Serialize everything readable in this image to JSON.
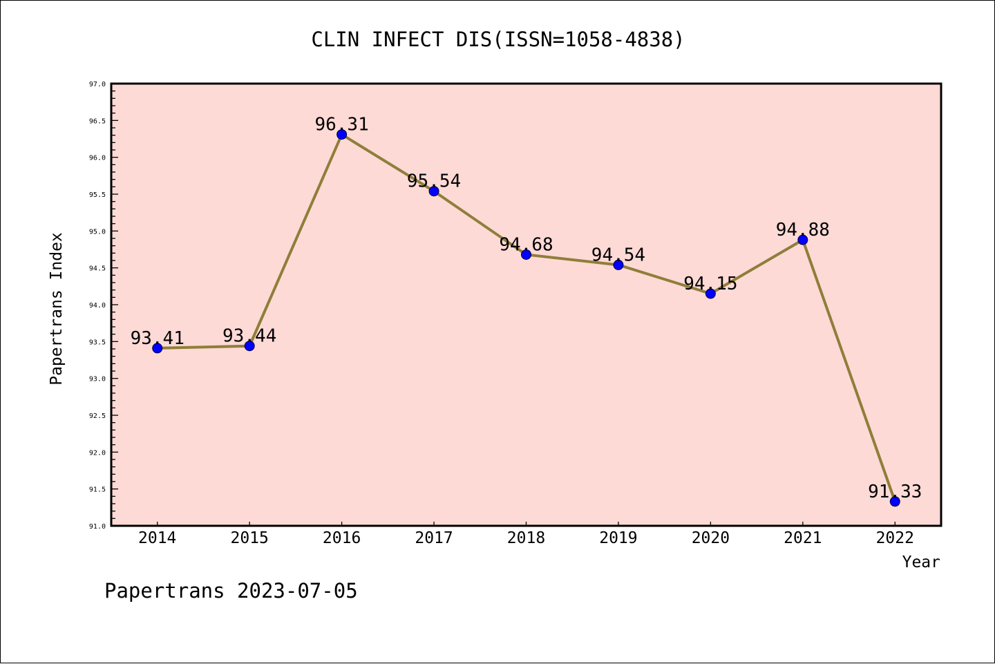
{
  "chart_data": {
    "type": "line",
    "title": "CLIN INFECT DIS(ISSN=1058-4838)",
    "xlabel": "Year",
    "ylabel": "Papertrans Index",
    "categories": [
      "2014",
      "2015",
      "2016",
      "2017",
      "2018",
      "2019",
      "2020",
      "2021",
      "2022"
    ],
    "values": [
      93.41,
      93.44,
      96.31,
      95.54,
      94.68,
      94.54,
      94.15,
      94.88,
      91.33
    ],
    "data_labels": [
      "93.41",
      "93.44",
      "96.31",
      "95.54",
      "94.68",
      "94.54",
      "94.15",
      "94.88",
      "91.33"
    ],
    "ylim": [
      91.0,
      97.0
    ],
    "yticks": [
      "91.0",
      "91.5",
      "92.0",
      "92.5",
      "93.0",
      "93.5",
      "94.0",
      "94.5",
      "95.0",
      "95.5",
      "96.0",
      "96.5",
      "97.0"
    ],
    "grid": false,
    "footer": "Papertrans 2023-07-05",
    "colors": {
      "plot_bg": "#FDDAD6",
      "line": "#8F7E3A",
      "marker": "#0000FF"
    }
  }
}
